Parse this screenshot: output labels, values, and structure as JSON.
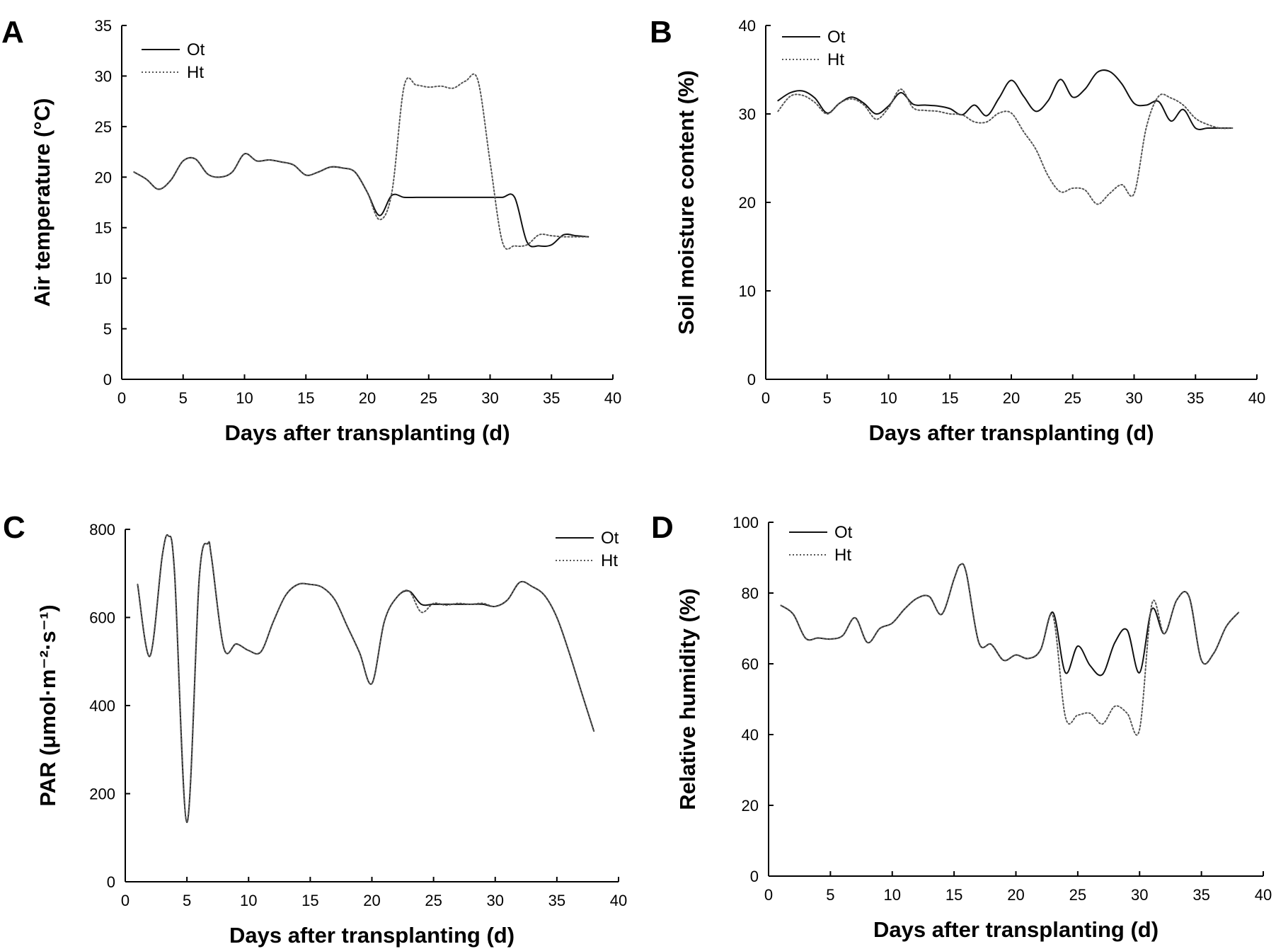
{
  "figure": {
    "legend_labels": [
      "Ot",
      "Ht"
    ]
  },
  "chart_data": [
    {
      "panel": "A",
      "type": "line",
      "ylabel": "Air temperature (°C)",
      "xlabel": "Days after transplanting (d)",
      "xlim": [
        0,
        40
      ],
      "ylim": [
        0,
        35
      ],
      "xticks": [
        0,
        5,
        10,
        15,
        20,
        25,
        30,
        35,
        40
      ],
      "yticks": [
        0,
        5,
        10,
        15,
        20,
        25,
        30,
        35
      ],
      "legend_position": "top-left",
      "series": [
        {
          "name": "Ot",
          "style": "solid",
          "x": [
            1,
            2,
            3,
            4,
            5,
            6,
            7,
            8,
            9,
            10,
            11,
            12,
            13,
            14,
            15,
            16,
            17,
            18,
            19,
            20,
            21,
            22,
            23,
            24,
            25,
            26,
            27,
            28,
            29,
            30,
            31,
            32,
            33,
            34,
            35,
            36,
            37,
            38
          ],
          "y": [
            20.5,
            19.8,
            18.8,
            19.7,
            21.6,
            21.8,
            20.3,
            20.0,
            20.5,
            22.3,
            21.6,
            21.7,
            21.5,
            21.2,
            20.2,
            20.5,
            21.0,
            20.9,
            20.5,
            18.5,
            16.2,
            18.2,
            18.0,
            18.0,
            18.0,
            18.0,
            18.0,
            18.0,
            18.0,
            18.0,
            18.0,
            18.0,
            13.6,
            13.2,
            13.3,
            14.3,
            14.2,
            14.1
          ]
        },
        {
          "name": "Ht",
          "style": "dotted",
          "x": [
            1,
            2,
            3,
            4,
            5,
            6,
            7,
            8,
            9,
            10,
            11,
            12,
            13,
            14,
            15,
            16,
            17,
            18,
            19,
            20,
            21,
            22,
            23,
            24,
            25,
            26,
            27,
            28,
            29,
            30,
            31,
            32,
            33,
            34,
            35,
            36,
            37,
            38
          ],
          "y": [
            20.5,
            19.8,
            18.8,
            19.7,
            21.6,
            21.8,
            20.3,
            20.0,
            20.5,
            22.3,
            21.6,
            21.7,
            21.5,
            21.2,
            20.2,
            20.5,
            21.0,
            20.9,
            20.5,
            18.5,
            15.8,
            18.5,
            29.0,
            29.1,
            28.9,
            29.0,
            28.8,
            29.5,
            29.6,
            21.5,
            13.6,
            13.2,
            13.3,
            14.3,
            14.2,
            14.1,
            14.1,
            14.1
          ]
        }
      ]
    },
    {
      "panel": "B",
      "type": "line",
      "ylabel": "Soil moisture content (%)",
      "xlabel": "Days after transplanting (d)",
      "xlim": [
        0,
        40
      ],
      "ylim": [
        0,
        40
      ],
      "xticks": [
        0,
        5,
        10,
        15,
        20,
        25,
        30,
        35,
        40
      ],
      "yticks": [
        0,
        10,
        20,
        30,
        40
      ],
      "legend_position": "top-left",
      "series": [
        {
          "name": "Ot",
          "style": "solid",
          "x": [
            1,
            2,
            3,
            4,
            5,
            6,
            7,
            8,
            9,
            10,
            11,
            12,
            13,
            14,
            15,
            16,
            17,
            18,
            19,
            20,
            21,
            22,
            23,
            24,
            25,
            26,
            27,
            28,
            29,
            30,
            31,
            32,
            33,
            34,
            35,
            36,
            37,
            38
          ],
          "y": [
            31.5,
            32.4,
            32.6,
            31.8,
            30.1,
            31.2,
            31.9,
            31.2,
            30.0,
            30.9,
            32.4,
            31.1,
            31.0,
            30.9,
            30.6,
            29.9,
            31.0,
            29.8,
            31.8,
            33.8,
            32.0,
            30.3,
            31.5,
            33.9,
            31.9,
            32.8,
            34.7,
            34.8,
            33.4,
            31.2,
            31.0,
            31.4,
            29.2,
            30.5,
            28.4,
            28.4,
            28.4,
            28.4
          ]
        },
        {
          "name": "Ht",
          "style": "dotted",
          "x": [
            1,
            2,
            3,
            4,
            5,
            6,
            7,
            8,
            9,
            10,
            11,
            12,
            13,
            14,
            15,
            16,
            17,
            18,
            19,
            20,
            21,
            22,
            23,
            24,
            25,
            26,
            27,
            28,
            29,
            30,
            31,
            32,
            33,
            34,
            35,
            36,
            37,
            38
          ],
          "y": [
            30.3,
            32.0,
            32.1,
            31.3,
            30.0,
            31.2,
            31.7,
            31.0,
            29.4,
            30.7,
            32.8,
            30.7,
            30.4,
            30.3,
            30.0,
            29.9,
            29.1,
            29.1,
            30.1,
            30.1,
            28.0,
            26.0,
            23.0,
            21.2,
            21.6,
            21.4,
            19.8,
            21.0,
            22.0,
            21.0,
            28.5,
            32.0,
            31.8,
            31.0,
            29.5,
            28.8,
            28.4,
            28.4
          ]
        }
      ]
    },
    {
      "panel": "C",
      "type": "line",
      "ylabel": "PAR (μmol·m⁻²·s⁻¹)",
      "xlabel": "Days after transplanting (d)",
      "xlim": [
        0,
        40
      ],
      "ylim": [
        0,
        800
      ],
      "xticks": [
        0,
        5,
        10,
        15,
        20,
        25,
        30,
        35,
        40
      ],
      "yticks": [
        0,
        200,
        400,
        600,
        800
      ],
      "legend_position": "top-right",
      "series": [
        {
          "name": "Ot",
          "style": "solid",
          "x": [
            1,
            2,
            3,
            3.5,
            4,
            5,
            6,
            6.7,
            7,
            8,
            9,
            10,
            11,
            12,
            13,
            14,
            15,
            16,
            17,
            18,
            19,
            20,
            21,
            22,
            23,
            24,
            25,
            26,
            27,
            28,
            29,
            30,
            31,
            32,
            33,
            34,
            35,
            36,
            37,
            38
          ],
          "y": [
            675,
            512,
            740,
            785,
            700,
            135,
            690,
            768,
            735,
            530,
            540,
            525,
            522,
            590,
            650,
            675,
            675,
            668,
            640,
            580,
            520,
            450,
            590,
            645,
            660,
            630,
            630,
            630,
            630,
            630,
            630,
            625,
            640,
            680,
            670,
            650,
            600,
            520,
            430,
            342
          ]
        },
        {
          "name": "Ht",
          "style": "dotted",
          "x": [
            1,
            2,
            3,
            3.5,
            4,
            5,
            6,
            6.7,
            7,
            8,
            9,
            10,
            11,
            12,
            13,
            14,
            15,
            16,
            17,
            18,
            19,
            20,
            21,
            22,
            23,
            24,
            25,
            26,
            27,
            28,
            29,
            30,
            31,
            32,
            33,
            34,
            35,
            36,
            37,
            38
          ],
          "y": [
            675,
            512,
            740,
            785,
            700,
            135,
            690,
            768,
            735,
            530,
            540,
            525,
            522,
            590,
            650,
            675,
            675,
            668,
            640,
            580,
            520,
            450,
            590,
            645,
            660,
            612,
            632,
            628,
            632,
            630,
            632,
            625,
            640,
            680,
            670,
            650,
            600,
            520,
            430,
            342
          ]
        }
      ]
    },
    {
      "panel": "D",
      "type": "line",
      "ylabel": "Relative humidity (%)",
      "xlabel": "Days after transplanting (d)",
      "xlim": [
        0,
        40
      ],
      "ylim": [
        0,
        100
      ],
      "xticks": [
        0,
        5,
        10,
        15,
        20,
        25,
        30,
        35,
        40
      ],
      "yticks": [
        0,
        20,
        40,
        60,
        80,
        100
      ],
      "legend_position": "top-left",
      "series": [
        {
          "name": "Ot",
          "style": "solid",
          "x": [
            1,
            2,
            3,
            4,
            5,
            6,
            7,
            8,
            9,
            10,
            11,
            12,
            13,
            14,
            15,
            15.5,
            16,
            17,
            18,
            19,
            20,
            21,
            22,
            23,
            24,
            25,
            26,
            27,
            28,
            29,
            30,
            31,
            32,
            33,
            34,
            35,
            36,
            37,
            38
          ],
          "y": [
            76.5,
            74.0,
            67.2,
            67.3,
            67.0,
            68.0,
            73.0,
            66.0,
            70.0,
            71.5,
            75.5,
            78.5,
            79.0,
            74.0,
            84.0,
            88.0,
            85.5,
            66.0,
            65.5,
            61.0,
            62.5,
            61.5,
            64.0,
            74.5,
            57.5,
            65.0,
            59.5,
            57.0,
            66.0,
            69.5,
            57.5,
            75.5,
            68.5,
            78.0,
            79.0,
            61.0,
            63.0,
            70.5,
            74.5
          ]
        },
        {
          "name": "Ht",
          "style": "dotted",
          "x": [
            1,
            2,
            3,
            4,
            5,
            6,
            7,
            8,
            9,
            10,
            11,
            12,
            13,
            14,
            15,
            15.5,
            16,
            17,
            18,
            19,
            20,
            21,
            22,
            23,
            24,
            25,
            26,
            27,
            28,
            29,
            30,
            31,
            32,
            33,
            34,
            35,
            36,
            37,
            38
          ],
          "y": [
            76.5,
            74.0,
            67.2,
            67.3,
            67.0,
            68.0,
            73.0,
            66.0,
            70.0,
            71.5,
            75.5,
            78.5,
            79.0,
            74.0,
            84.0,
            88.0,
            85.5,
            66.0,
            65.5,
            61.0,
            62.5,
            61.5,
            64.0,
            73.5,
            45.0,
            45.5,
            46.0,
            43.0,
            48.0,
            46.0,
            41.5,
            77.0,
            68.5,
            78.0,
            79.0,
            61.0,
            63.0,
            70.5,
            74.5
          ]
        }
      ]
    }
  ]
}
